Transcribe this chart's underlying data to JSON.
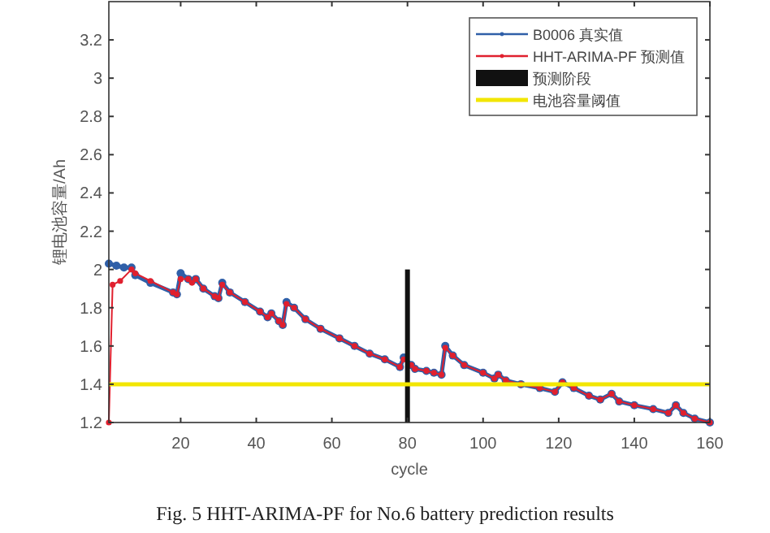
{
  "chart_data": {
    "type": "line",
    "xlabel": "cycle",
    "ylabel": "锂电池容量/Ah",
    "annotations": [
      "Fig. 5    HHT-ARIMA-PF for No.6 battery prediction results"
    ],
    "xlim": [
      1,
      160
    ],
    "ylim": [
      1.2,
      3.4
    ],
    "xticks": [
      20,
      40,
      60,
      80,
      100,
      120,
      140,
      160
    ],
    "yticks": [
      1.2,
      1.4,
      1.6,
      1.8,
      2,
      2.2,
      2.4,
      2.6,
      2.8,
      3,
      3.2
    ],
    "grid": false,
    "legend": "top right",
    "marker": "circle",
    "line_style": "solid",
    "series": [
      {
        "name": "B0006 真实值",
        "color": "#2f5fa8",
        "x": [
          1,
          3,
          5,
          7,
          8,
          12,
          18,
          19,
          20,
          22,
          23,
          24,
          26,
          29,
          30,
          31,
          33,
          37,
          41,
          43,
          44,
          46,
          47,
          48,
          50,
          53,
          57,
          62,
          66,
          70,
          74,
          78,
          79,
          81,
          82,
          85,
          87,
          89,
          90,
          92,
          95,
          100,
          103,
          104,
          106,
          110,
          115,
          119,
          121,
          124,
          128,
          131,
          134,
          136,
          140,
          145,
          149,
          151,
          153,
          156,
          160
        ],
        "values": [
          2.03,
          2.02,
          2.01,
          2.01,
          1.97,
          1.93,
          1.88,
          1.87,
          1.98,
          1.95,
          1.94,
          1.95,
          1.9,
          1.86,
          1.85,
          1.93,
          1.88,
          1.83,
          1.78,
          1.75,
          1.77,
          1.73,
          1.71,
          1.83,
          1.8,
          1.74,
          1.69,
          1.64,
          1.6,
          1.56,
          1.53,
          1.49,
          1.54,
          1.5,
          1.48,
          1.47,
          1.46,
          1.45,
          1.6,
          1.55,
          1.5,
          1.46,
          1.43,
          1.45,
          1.42,
          1.4,
          1.38,
          1.36,
          1.41,
          1.38,
          1.34,
          1.32,
          1.35,
          1.31,
          1.29,
          1.27,
          1.25,
          1.29,
          1.25,
          1.22,
          1.2
        ]
      },
      {
        "name": "HHT-ARIMA-PF 预测值",
        "color": "#e0202e",
        "x": [
          1,
          2,
          4,
          7,
          8,
          12,
          18,
          19,
          20,
          22,
          23,
          24,
          26,
          29,
          30,
          31,
          33,
          37,
          41,
          43,
          44,
          46,
          47,
          48,
          50,
          53,
          57,
          62,
          66,
          70,
          74,
          78,
          79,
          81,
          82,
          85,
          87,
          89,
          90,
          92,
          95,
          100,
          103,
          104,
          106,
          110,
          115,
          119,
          121,
          124,
          128,
          131,
          134,
          136,
          140,
          145,
          149,
          151,
          153,
          156,
          160
        ],
        "values": [
          1.2,
          1.92,
          1.94,
          2,
          1.98,
          1.94,
          1.88,
          1.87,
          1.95,
          1.95,
          1.93,
          1.95,
          1.9,
          1.86,
          1.85,
          1.92,
          1.88,
          1.83,
          1.78,
          1.75,
          1.77,
          1.73,
          1.71,
          1.82,
          1.8,
          1.74,
          1.69,
          1.64,
          1.6,
          1.56,
          1.53,
          1.49,
          1.53,
          1.5,
          1.48,
          1.47,
          1.46,
          1.45,
          1.59,
          1.55,
          1.5,
          1.46,
          1.43,
          1.45,
          1.42,
          1.4,
          1.38,
          1.36,
          1.41,
          1.38,
          1.34,
          1.32,
          1.35,
          1.31,
          1.29,
          1.27,
          1.25,
          1.29,
          1.25,
          1.22,
          1.2
        ]
      },
      {
        "name": "预测阶段",
        "type": "bar",
        "color": "#111111",
        "x": [
          80
        ],
        "values": [
          2
        ]
      }
    ],
    "ref_lines": [
      {
        "axis": "y",
        "value": 1.4,
        "label": "电池容量阈值",
        "color": "#f2e600"
      }
    ]
  }
}
